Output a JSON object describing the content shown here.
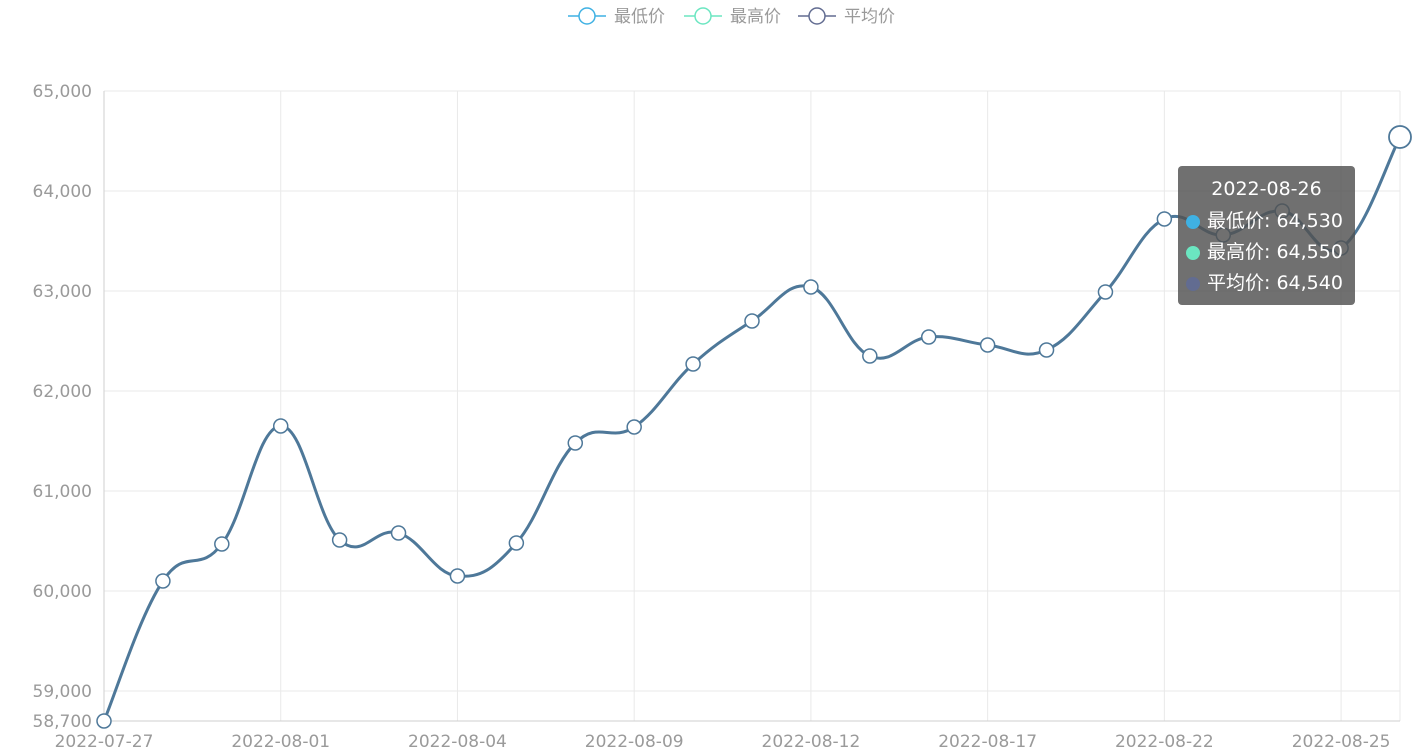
{
  "legend": [
    {
      "name": "最低价",
      "color": "#3fb1e3",
      "icon": "circle-line-icon"
    },
    {
      "name": "最高价",
      "color": "#6be6c1",
      "icon": "circle-line-icon"
    },
    {
      "name": "平均价",
      "color": "#626c91",
      "icon": "circle-line-icon"
    }
  ],
  "tooltip": {
    "title": "2022-08-26",
    "rows": [
      {
        "label": "最低价: 64,530",
        "color": "#3fb1e3"
      },
      {
        "label": "最高价: 64,550",
        "color": "#6be6c1"
      },
      {
        "label": "平均价: 64,540",
        "color": "#626c91"
      }
    ]
  },
  "chart_data": {
    "type": "line",
    "x": [
      "2022-07-27",
      "2022-07-28",
      "2022-07-29",
      "2022-08-01",
      "2022-08-02",
      "2022-08-03",
      "2022-08-04",
      "2022-08-05",
      "2022-08-08",
      "2022-08-09",
      "2022-08-10",
      "2022-08-11",
      "2022-08-12",
      "2022-08-15",
      "2022-08-16",
      "2022-08-17",
      "2022-08-18",
      "2022-08-19",
      "2022-08-22",
      "2022-08-23",
      "2022-08-24",
      "2022-08-25",
      "2022-08-26"
    ],
    "x_tick_labels": [
      "2022-07-27",
      "2022-08-01",
      "2022-08-04",
      "2022-08-09",
      "2022-08-12",
      "2022-08-17",
      "2022-08-22",
      "2022-08-25"
    ],
    "y_tick_labels": [
      "58,700",
      "59,000",
      "60,000",
      "61,000",
      "62,000",
      "63,000",
      "64,000",
      "65,000"
    ],
    "y_ticks": [
      58700,
      59000,
      60000,
      61000,
      62000,
      63000,
      64000,
      65000
    ],
    "ylim": [
      58700,
      65000
    ],
    "grid": true,
    "legend_position": "top-center",
    "line_color": "#4e7899",
    "series": [
      {
        "name": "平均价",
        "values": [
          58700,
          60100,
          60470,
          61650,
          60510,
          60580,
          60150,
          60480,
          61480,
          61640,
          62270,
          62700,
          63040,
          62350,
          62540,
          62460,
          62410,
          62990,
          63720,
          63560,
          63800,
          63430,
          64540
        ]
      }
    ]
  }
}
